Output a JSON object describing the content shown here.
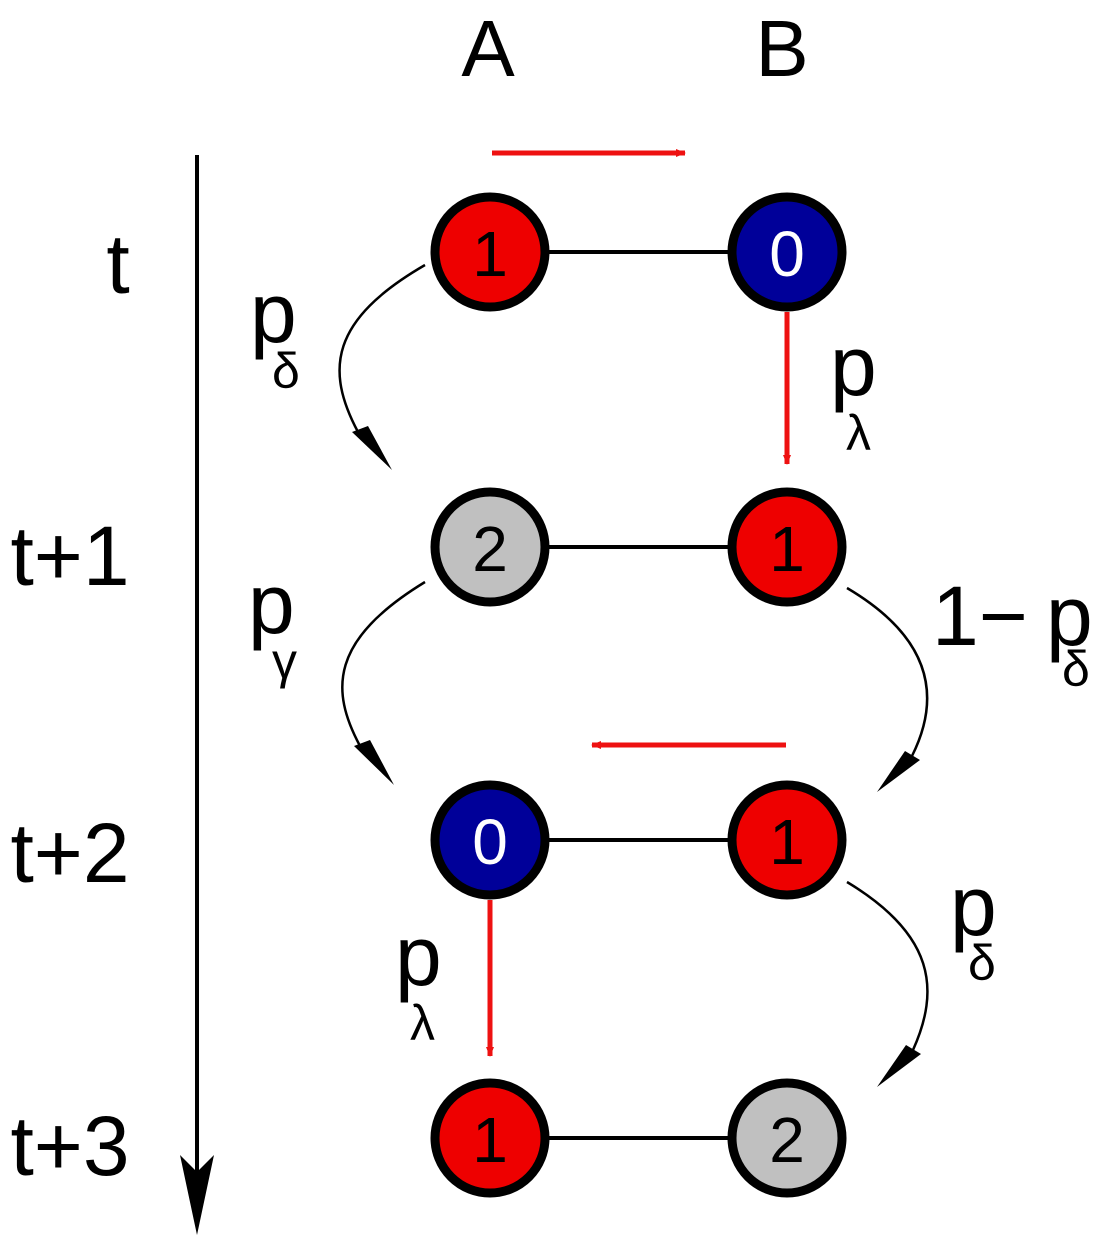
{
  "columns": {
    "a": "A",
    "b": "B"
  },
  "time_labels": [
    "t",
    "t+1",
    "t+2",
    "t+3"
  ],
  "colors": {
    "active": "#ee0000",
    "susceptible": "#000099",
    "recovered": "#c0c0c0",
    "arrow_red": "#ee1111"
  },
  "rows": [
    {
      "a": "1",
      "b": "0"
    },
    {
      "a": "2",
      "b": "1"
    },
    {
      "a": "0",
      "b": "1"
    },
    {
      "a": "1",
      "b": "2"
    }
  ],
  "probabilities": {
    "p": "p",
    "delta": "δ",
    "lambda": "λ",
    "gamma": "γ",
    "one_minus": "1−"
  }
}
